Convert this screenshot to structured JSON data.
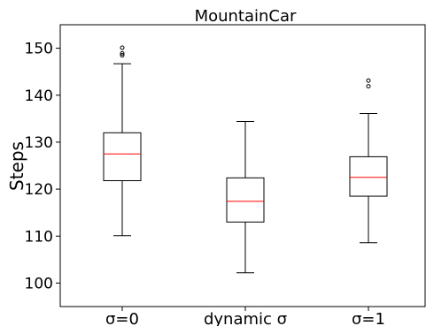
{
  "chart_data": {
    "type": "box",
    "title": "MountainCar",
    "xlabel": "",
    "ylabel": "Steps",
    "ylim": [
      95,
      155
    ],
    "yticks": [
      100,
      110,
      120,
      130,
      140,
      150
    ],
    "grid": false,
    "categories": [
      "σ=0",
      "dynamic σ",
      "σ=1"
    ],
    "boxes": [
      {
        "category": "σ=0",
        "whisker_low": 110.1,
        "q1": 121.8,
        "median": 127.5,
        "q3": 132.0,
        "whisker_high": 146.7,
        "outliers": [
          148.5,
          148.9,
          150.1
        ]
      },
      {
        "category": "dynamic σ",
        "whisker_low": 102.2,
        "q1": 113.0,
        "median": 117.4,
        "q3": 122.4,
        "whisker_high": 134.4,
        "outliers": []
      },
      {
        "category": "σ=1",
        "whisker_low": 108.6,
        "q1": 118.5,
        "median": 122.5,
        "q3": 126.9,
        "whisker_high": 136.1,
        "outliers": [
          141.9,
          143.1
        ]
      }
    ],
    "colors": {
      "box": "#000000",
      "median": "#ff0000",
      "outlier": "#000000"
    }
  }
}
